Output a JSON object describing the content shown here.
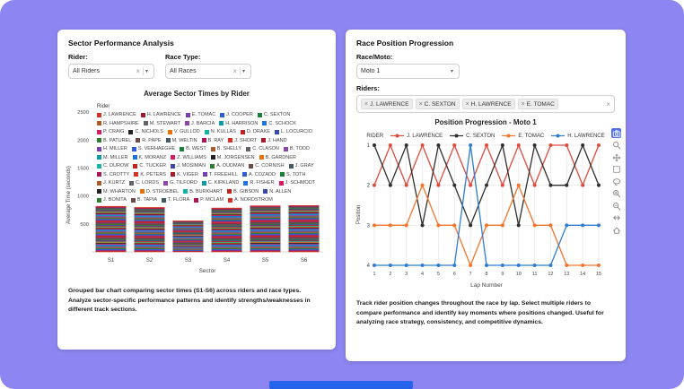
{
  "page": {
    "background_color": "#8d86f2",
    "fragment_color": "#2563eb"
  },
  "icons": {
    "clear": "×",
    "caret": "▾",
    "chip_remove": "×"
  },
  "left_card": {
    "title": "Sector Performance Analysis",
    "filters": {
      "rider_label": "Rider:",
      "rider_value": "All Riders",
      "race_type_label": "Race Type:",
      "race_type_value": "All Races"
    },
    "caption": "Grouped bar chart comparing sector times (S1-S6) across riders and race types. Analyze sector-specific performance patterns and identify strengths/weaknesses in different track sections."
  },
  "right_card": {
    "title": "Race Position Progression",
    "filters": {
      "race_label": "Race/Moto:",
      "race_value": "Moto 1",
      "riders_label": "Riders:",
      "selected_riders": [
        "J. LAWRENCE",
        "C. SEXTON",
        "H. LAWRENCE",
        "E. TOMAC"
      ]
    },
    "caption": "Track rider position changes throughout the race by lap. Select multiple riders to compare performance and identify key moments where positions changed. Useful for analyzing race strategy, consistency, and competitive dynamics."
  },
  "modebar": {
    "active_color": "#4c6ef5",
    "icons": [
      "download-plot-icon",
      "zoom-icon",
      "pan-icon",
      "box-select-icon",
      "lasso-select-icon",
      "zoom-in-icon",
      "zoom-out-icon",
      "autoscale-icon",
      "reset-axes-icon"
    ]
  },
  "chart_data": [
    {
      "type": "bar",
      "stacked": true,
      "title": "Average Sector Times by Rider",
      "xlabel": "Sector",
      "ylabel": "Average Time (seconds)",
      "legend_title": "Rider",
      "categories": [
        "S1",
        "S2",
        "S3",
        "S4",
        "S5",
        "S6"
      ],
      "totals": [
        820,
        800,
        560,
        790,
        830,
        840
      ],
      "yticks": [
        500,
        1000,
        1500,
        2000,
        2500
      ],
      "ylim": [
        0,
        2600
      ],
      "grid": true,
      "legend_position": "top-inside",
      "palette": [
        "#d93025",
        "#a61b29",
        "#7a3db8",
        "#2e5bd7",
        "#188038",
        "#b05a2a",
        "#5f6368",
        "#8e44ad",
        "#0e9aa7",
        "#1a73e8",
        "#d81b60",
        "#202124",
        "#e8710a",
        "#12b5a5",
        "#c5221f",
        "#3949ab",
        "#2e7d32",
        "#6d4c41",
        "#455a64",
        "#ad1457"
      ],
      "riders": [
        "J. LAWRENCE",
        "H. LAWRENCE",
        "E. TOMAC",
        "J. COOPER",
        "C. SEXTON",
        "R. HAMPSHIRE",
        "M. STEWART",
        "J. BARCIA",
        "H. HARRISON",
        "C. SCHOCK",
        "P. CRAIG",
        "C. NICHOLS",
        "V. GULLOD",
        "N. KULLAS",
        "D. DRAKE",
        "L. LOCURCIO",
        "B. PATUREL",
        "R. PAPE",
        "M. WELTIN",
        "B. RAY",
        "J. SHORT",
        "J. HAND",
        "H. MILLER",
        "S. VERHAEGHE",
        "B. WEST",
        "B. SHELLY",
        "C. CLASON",
        "B. TODD",
        "M. MILLER",
        "K. MORANZ",
        "Z. WILLIAMS",
        "M. JORGENSEN",
        "B. GARDNER",
        "C. DUROW",
        "C. TUCKER",
        "J. MOSIMAN",
        "A. OUDMAN",
        "C. CORNISH",
        "J. GRAY",
        "S. CROTTY",
        "K. PETERS",
        "K. VIGER",
        "T. FREEHILL",
        "A. COZADD",
        "S. TOTH",
        "J. KURTZ",
        "C. LORDS",
        "G. TILFORD",
        "C. KIRKLAND",
        "R. FISHER",
        "J. SCHMODT",
        "M. WHARTON",
        "D. STROEBEL",
        "B. BURKHART",
        "B. GIBSON",
        "N. ALLEN",
        "J. BONITA",
        "B. TAPIA",
        "T. FLORA",
        "P. MCLAM",
        "A. NORDSTROM"
      ]
    },
    {
      "type": "line",
      "title": "Position Progression - Moto 1",
      "xlabel": "Lap Number",
      "ylabel": "Position",
      "legend_title": "RIDER",
      "legend_position": "top",
      "grid": true,
      "x": [
        1,
        2,
        3,
        4,
        5,
        6,
        7,
        8,
        9,
        10,
        11,
        12,
        13,
        14,
        15
      ],
      "yticks": [
        1,
        2,
        3,
        4
      ],
      "y_inverted": true,
      "series": [
        {
          "name": "J. LAWRENCE",
          "color": "#df4a3c",
          "values": [
            2,
            1,
            2,
            1,
            2,
            1,
            2,
            1,
            2,
            1,
            2,
            1,
            1,
            2,
            1
          ]
        },
        {
          "name": "C. SEXTON",
          "color": "#2f2f2f",
          "values": [
            1,
            2,
            1,
            3,
            1,
            2,
            3,
            2,
            1,
            3,
            1,
            2,
            2,
            1,
            2
          ]
        },
        {
          "name": "E. TOMAC",
          "color": "#f4742b",
          "values": [
            3,
            3,
            3,
            2,
            3,
            3,
            4,
            3,
            3,
            2,
            3,
            3,
            4,
            4,
            4
          ]
        },
        {
          "name": "H. LAWRENCE",
          "color": "#2e7dd1",
          "values": [
            4,
            4,
            4,
            4,
            4,
            4,
            1,
            4,
            4,
            4,
            4,
            4,
            3,
            3,
            3
          ]
        }
      ]
    }
  ]
}
